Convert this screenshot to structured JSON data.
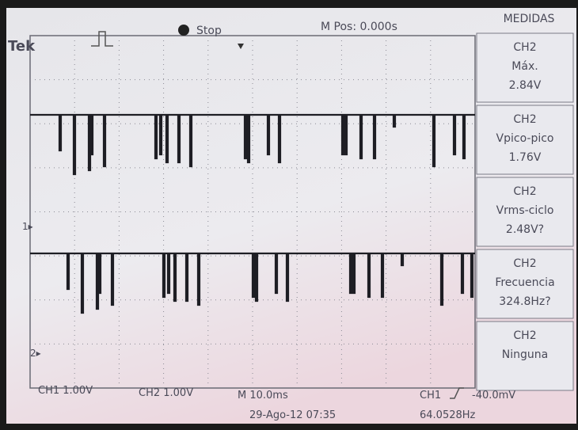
{
  "header": {
    "brand": "Tek",
    "state": "Stop",
    "position": "M Pos: 0.000s",
    "menu": "MEDIDAS"
  },
  "measurements": [
    {
      "channel": "CH2",
      "name": "Máx.",
      "value": "2.84V"
    },
    {
      "channel": "CH2",
      "name": "Vpico-pico",
      "value": "1.76V"
    },
    {
      "channel": "CH2",
      "name": "Vrms-ciclo",
      "value": "2.48V?"
    },
    {
      "channel": "CH2",
      "name": "Frecuencia",
      "value": "324.8Hz?"
    },
    {
      "channel": "CH2",
      "name": "Ninguna"
    }
  ],
  "footer": {
    "ch1_scale": "CH1  1.00V",
    "ch2_scale": "CH2  1.00V",
    "timebase": "M 10.0ms",
    "datetime": "29-Ago-12 07:35",
    "trigger_source": "CH1",
    "trigger_level": "-40.0mV",
    "trigger_freq": "64.0528Hz"
  }
}
